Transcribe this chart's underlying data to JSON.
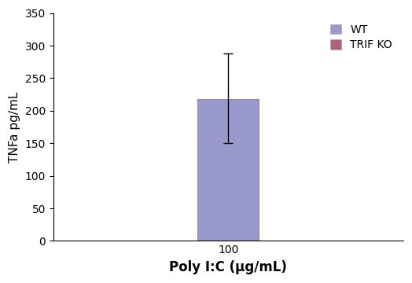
{
  "bar_value": 218,
  "bar_error_upper": 70,
  "bar_error_lower": 68,
  "bar_color": "#9999cc",
  "bar_edgecolor": "#8888bb",
  "bar_width": 0.35,
  "bar_x": 1,
  "xtick_labels": [
    "100"
  ],
  "xtick_positions": [
    1
  ],
  "ylabel": "TNFa pg/mL",
  "xlabel": "Poly I:C (µg/mL)",
  "ylim": [
    0,
    350
  ],
  "yticks": [
    0,
    50,
    100,
    150,
    200,
    250,
    300,
    350
  ],
  "xlim": [
    0,
    2
  ],
  "legend_items": [
    {
      "label": "WT",
      "color": "#9999cc"
    },
    {
      "label": "TRIF KO",
      "color": "#b06080"
    }
  ],
  "background_color": "#ffffff",
  "xlabel_fontsize": 12,
  "ylabel_fontsize": 11,
  "tick_fontsize": 10,
  "legend_fontsize": 10
}
